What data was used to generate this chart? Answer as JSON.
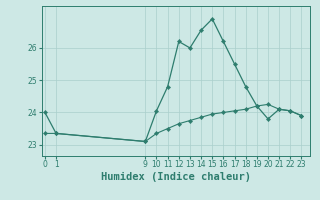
{
  "xlabel": "Humidex (Indice chaleur)",
  "background_color": "#cde8e5",
  "line_color": "#2e7d6e",
  "grid_color": "#aacfcc",
  "x_hours": [
    0,
    1,
    9,
    10,
    11,
    12,
    13,
    14,
    15,
    16,
    17,
    18,
    19,
    20,
    21,
    22,
    23
  ],
  "y_upper": [
    24.0,
    23.35,
    23.1,
    24.05,
    24.8,
    26.2,
    26.0,
    26.55,
    26.9,
    26.2,
    25.5,
    24.8,
    24.2,
    23.8,
    24.1,
    24.05,
    23.9
  ],
  "y_lower": [
    23.35,
    23.35,
    23.1,
    23.35,
    23.5,
    23.65,
    23.75,
    23.85,
    23.95,
    24.0,
    24.05,
    24.1,
    24.2,
    24.25,
    24.1,
    24.05,
    23.9
  ],
  "ylim": [
    22.65,
    27.3
  ],
  "yticks": [
    23,
    24,
    25,
    26
  ],
  "xticks": [
    0,
    1,
    9,
    10,
    11,
    12,
    13,
    14,
    15,
    16,
    17,
    18,
    19,
    20,
    21,
    22,
    23
  ],
  "xlim": [
    -0.3,
    23.8
  ],
  "xlabel_fontsize": 7.5,
  "tick_fontsize": 5.5
}
